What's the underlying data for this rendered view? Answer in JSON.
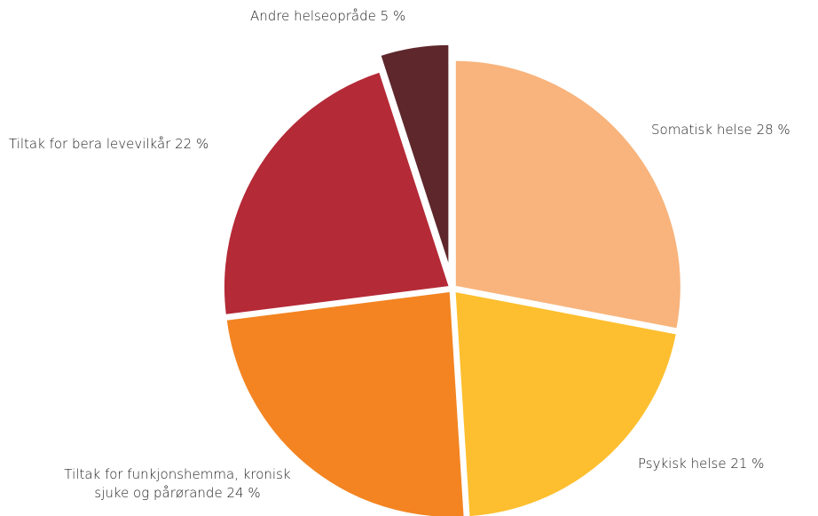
{
  "chart_data": {
    "type": "pie",
    "categories": [
      "Somatisk helse",
      "Psykisk helse",
      "Tiltak for funkjonshemma, kronisk sjuke og pårørande",
      "Tiltak for bera levevilkår",
      "Andre helseopråde"
    ],
    "values": [
      28,
      21,
      24,
      22,
      5
    ],
    "value_labels": [
      "28 %",
      "21 %",
      "24 %",
      "22 %",
      "5 %"
    ],
    "colors": [
      "#f8b47c",
      "#fdbf2f",
      "#f38421",
      "#b52a37",
      "#5e272b"
    ]
  }
}
